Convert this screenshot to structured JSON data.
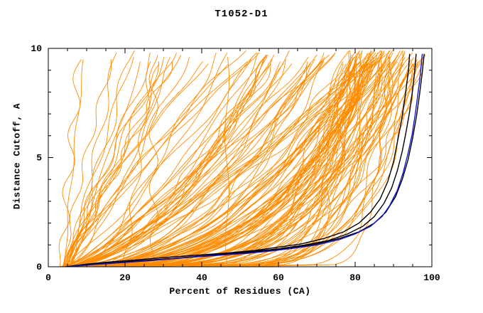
{
  "chart_data": {
    "type": "line",
    "title": "T1052-D1",
    "xlabel": "Percent of Residues (CA)",
    "ylabel": "Distance Cutoff, A",
    "xlim": [
      0,
      100
    ],
    "ylim": [
      0,
      10
    ],
    "x_major_ticks": [
      0,
      20,
      40,
      60,
      80,
      100
    ],
    "x_minor_step": 5,
    "y_major_ticks": [
      0,
      5,
      10
    ],
    "y_minor_step": 1,
    "grid": false,
    "legend": "none",
    "colors": {
      "background": "#ffffff",
      "frame": "#000000",
      "ensemble": "#ff8c00",
      "highlight": "#000000",
      "reference": "#1414cc"
    },
    "ensemble": {
      "description": "fan of server/model GDT curves",
      "count": 155,
      "seed": 1052,
      "x_start_range": [
        3,
        6
      ],
      "groups": [
        {
          "name": "high-accuracy",
          "fraction": 0.52,
          "xf": [
            78,
            99
          ],
          "exp": [
            0.08,
            0.45
          ]
        },
        {
          "name": "medium-accuracy",
          "fraction": 0.26,
          "xf": [
            55,
            92
          ],
          "exp": [
            0.35,
            0.85
          ]
        },
        {
          "name": "low-accuracy",
          "fraction": 0.22,
          "xf": [
            8,
            60
          ],
          "exp": [
            0.6,
            1.3
          ]
        }
      ]
    },
    "highlight_series": [
      {
        "name": "black-model-1",
        "points": [
          [
            4.5,
            0
          ],
          [
            10,
            0.12
          ],
          [
            16,
            0.22
          ],
          [
            22,
            0.3
          ],
          [
            30,
            0.42
          ],
          [
            38,
            0.52
          ],
          [
            46,
            0.62
          ],
          [
            54,
            0.75
          ],
          [
            60,
            0.9
          ],
          [
            66,
            1.05
          ],
          [
            72,
            1.3
          ],
          [
            77,
            1.6
          ],
          [
            81,
            2.0
          ],
          [
            84,
            2.5
          ],
          [
            86.5,
            3.1
          ],
          [
            88.5,
            3.9
          ],
          [
            90,
            4.8
          ],
          [
            91,
            5.7
          ],
          [
            92,
            6.6
          ],
          [
            92.8,
            7.5
          ],
          [
            93.4,
            8.3
          ],
          [
            93.9,
            9.0
          ],
          [
            94.2,
            9.75
          ]
        ]
      },
      {
        "name": "black-model-2",
        "points": [
          [
            4.5,
            0
          ],
          [
            14,
            0.15
          ],
          [
            24,
            0.28
          ],
          [
            34,
            0.4
          ],
          [
            44,
            0.55
          ],
          [
            52,
            0.68
          ],
          [
            60,
            0.82
          ],
          [
            67,
            1.0
          ],
          [
            73,
            1.2
          ],
          [
            78,
            1.5
          ],
          [
            82,
            1.85
          ],
          [
            85,
            2.3
          ],
          [
            87.5,
            2.9
          ],
          [
            89.5,
            3.6
          ],
          [
            91,
            4.4
          ],
          [
            92.3,
            5.3
          ],
          [
            93.3,
            6.2
          ],
          [
            94.2,
            7.1
          ],
          [
            94.9,
            8.0
          ],
          [
            95.5,
            8.9
          ],
          [
            95.9,
            9.75
          ]
        ]
      },
      {
        "name": "black-model-3",
        "points": [
          [
            4.5,
            0
          ],
          [
            15,
            0.15
          ],
          [
            26,
            0.28
          ],
          [
            36,
            0.42
          ],
          [
            46,
            0.56
          ],
          [
            55,
            0.7
          ],
          [
            63,
            0.85
          ],
          [
            70,
            1.05
          ],
          [
            76,
            1.3
          ],
          [
            81,
            1.6
          ],
          [
            85,
            2.0
          ],
          [
            88,
            2.5
          ],
          [
            90.5,
            3.2
          ],
          [
            92.3,
            4.0
          ],
          [
            93.8,
            4.9
          ],
          [
            95,
            5.9
          ],
          [
            96,
            6.9
          ],
          [
            96.8,
            7.9
          ],
          [
            97.5,
            8.9
          ],
          [
            98,
            9.75
          ]
        ]
      }
    ],
    "reference_series": {
      "name": "blue-model",
      "points": [
        [
          4.5,
          0
        ],
        [
          12,
          0.1
        ],
        [
          20,
          0.2
        ],
        [
          28,
          0.3
        ],
        [
          36,
          0.42
        ],
        [
          44,
          0.52
        ],
        [
          52,
          0.62
        ],
        [
          58,
          0.72
        ],
        [
          64,
          0.85
        ],
        [
          70,
          1.0
        ],
        [
          76,
          1.25
        ],
        [
          80,
          1.5
        ],
        [
          84,
          1.85
        ],
        [
          87,
          2.3
        ],
        [
          89,
          2.8
        ],
        [
          91,
          3.5
        ],
        [
          92.5,
          4.3
        ],
        [
          93.8,
          5.2
        ],
        [
          94.8,
          6.0
        ],
        [
          95.6,
          6.9
        ],
        [
          96.2,
          7.7
        ],
        [
          96.8,
          8.5
        ],
        [
          97.2,
          9.2
        ],
        [
          97.5,
          9.75
        ]
      ]
    }
  }
}
